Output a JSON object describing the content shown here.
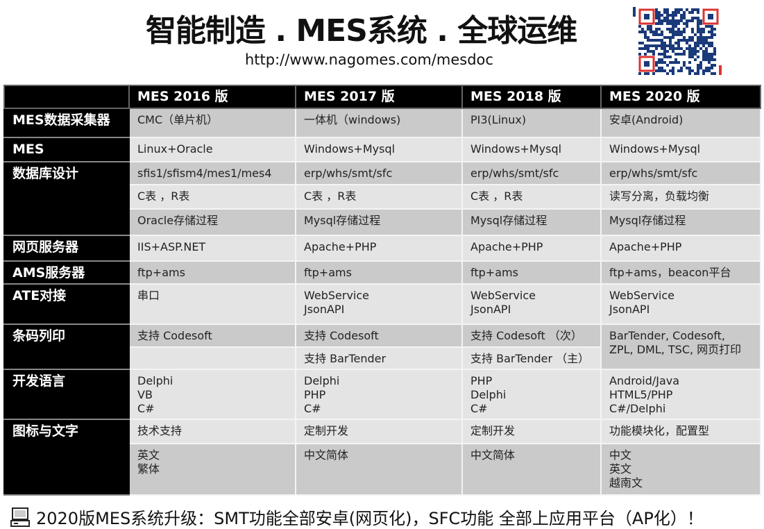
{
  "header": {
    "title": "智能制造 . MES系统 . 全球运维",
    "url": "http://www.nagomes.com/mesdoc"
  },
  "table": {
    "columns": [
      "",
      "MES 2016 版",
      "MES 2017 版",
      "MES 2018 版",
      "MES 2020 版"
    ],
    "rows": {
      "collector": {
        "label": "MES数据采集器",
        "cells": [
          "CMC（单片机）",
          "一体机（windows)",
          "PI3(Linux)",
          "安卓(Android)"
        ]
      },
      "mes": {
        "label": "MES",
        "cells": [
          "Linux+Oracle",
          "Windows+Mysql",
          "Windows+Mysql",
          "Windows+Mysql"
        ]
      },
      "db1": {
        "label": "数据库设计",
        "cells": [
          "sfis1/sfism4/mes1/mes4",
          "erp/whs/smt/sfc",
          "erp/whs/smt/sfc",
          "erp/whs/smt/sfc"
        ]
      },
      "db2": {
        "cells": [
          "C表 ，R表",
          "C表 ，R表",
          "C表 ，R表",
          "读写分离，负载均衡"
        ]
      },
      "db3": {
        "cells": [
          "Oracle存储过程",
          "Mysql存储过程",
          "Mysql存储过程",
          "Mysql存储过程"
        ]
      },
      "web": {
        "label": "网页服务器",
        "cells": [
          "IIS+ASP.NET",
          "Apache+PHP",
          "Apache+PHP",
          "Apache+PHP"
        ]
      },
      "ams": {
        "label": "AMS服务器",
        "cells": [
          "ftp+ams",
          "ftp+ams",
          "ftp+ams",
          "ftp+ams，beacon平台"
        ]
      },
      "ate": {
        "label": "ATE对接",
        "cells": [
          "串口",
          [
            "WebService",
            "JsonAPI"
          ],
          [
            "WebService",
            "JsonAPI"
          ],
          [
            "WebService",
            "JsonAPI"
          ]
        ]
      },
      "barcode1": {
        "label": "条码列印",
        "cells": [
          "支持 Codesoft",
          "支持 Codesoft",
          "支持 Codesoft （次）",
          [
            "BarTender, Codesoft,",
            "ZPL, DML, TSC, 网页打印"
          ]
        ]
      },
      "barcode2": {
        "cells": [
          "",
          "支持 BarTender",
          "支持 BarTender （主）"
        ]
      },
      "lang": {
        "label": "开发语言",
        "cells": [
          [
            "Delphi",
            "VB",
            "C#"
          ],
          [
            "Delphi",
            "PHP",
            "C#"
          ],
          [
            "PHP",
            "Delphi",
            "C#"
          ],
          [
            "Android/Java",
            "HTML5/PHP",
            "C#/Delphi"
          ]
        ]
      },
      "ui1": {
        "label": "图标与文字",
        "cells": [
          "技术支持",
          "定制开发",
          "定制开发",
          "功能模块化，配置型"
        ]
      },
      "ui2": {
        "cells": [
          [
            "英文",
            "繁体"
          ],
          "中文简体",
          "中文简体",
          [
            "中文",
            "英文",
            "越南文"
          ]
        ]
      }
    }
  },
  "footer": {
    "icon": "computer-icon",
    "text": "2020版MES系统升级：SMT功能全部安卓(网页化)，SFC功能 全部上应用平台（AP化）！"
  }
}
